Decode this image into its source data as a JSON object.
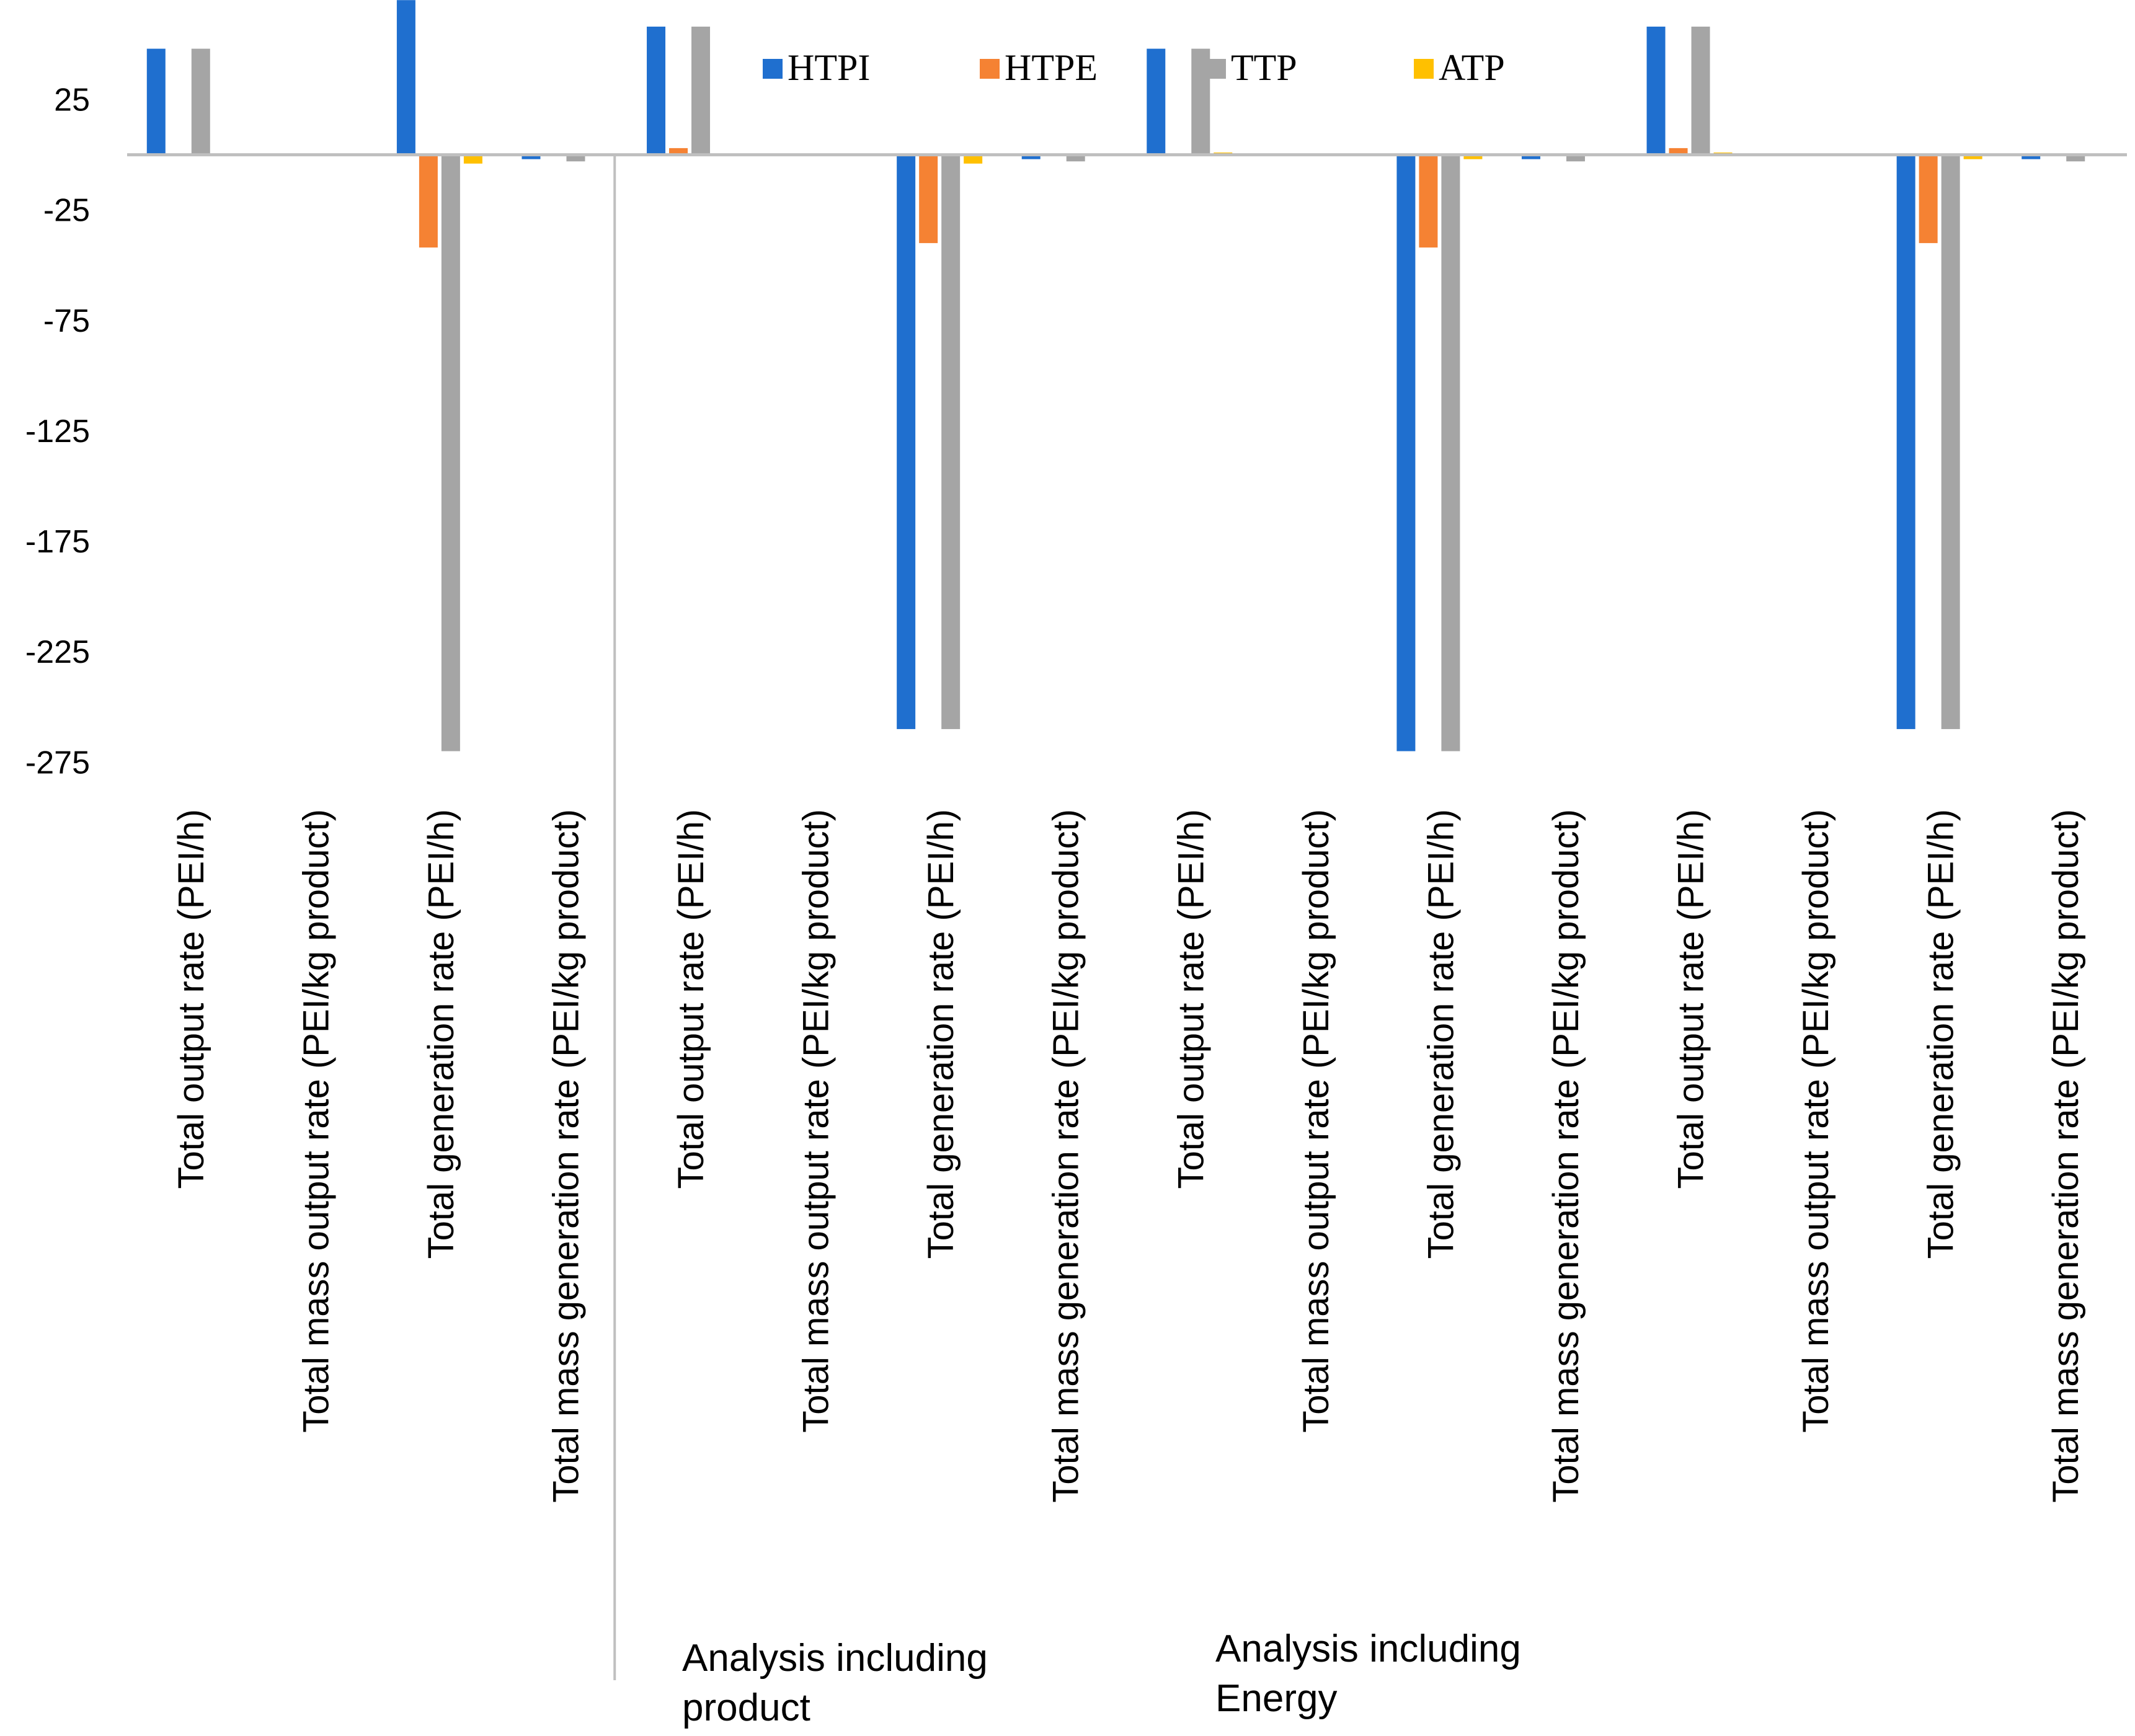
{
  "chart_data": {
    "type": "bar",
    "title": "",
    "xlabel": "",
    "ylabel": "",
    "ylim": [
      -285,
      65
    ],
    "y_ticks": [
      25,
      -25,
      -75,
      -125,
      -175,
      -225,
      -275
    ],
    "grid": false,
    "legend_position": "top-center",
    "categories": [
      "Total  output rate   (PEI/h)",
      "Total mass output rate (PEI/kg product)",
      "Total generation rate  (PEI/h)",
      "Total mass generation rate (PEI/kg product)",
      "Total output rate  (PEI/h)",
      "Total mass output rate (PEI/kg product)",
      "Total generation rate  (PEI/h)",
      "Total mass generation rate (PEI/kg product)",
      "Total output rate  (PEI/h)",
      "Total mass output rate (PEI/kg product)",
      "Total generation rate  (PEI/h)",
      "Total mass generation rate (PEI/kg product)",
      "Total output rate  (PEI/h)",
      "Total mass output rate (PEI/kg product)",
      "Total generation rate  (PEI/h)",
      "Total mass generation rate (PEI/kg product)"
    ],
    "series": [
      {
        "name": "HTPI",
        "color": "#1f6fcf",
        "values": [
          48,
          0,
          70,
          -2,
          58,
          0,
          -260,
          -2,
          48,
          0,
          -270,
          -2,
          58,
          0,
          -260,
          -2
        ]
      },
      {
        "name": "HTPE",
        "color": "#f58233",
        "values": [
          0,
          0,
          -42,
          0,
          3,
          0,
          -40,
          0,
          0,
          0,
          -42,
          0,
          3,
          0,
          -40,
          0
        ]
      },
      {
        "name": "TTP",
        "color": "#a5a5a5",
        "values": [
          48,
          0,
          -270,
          -3,
          58,
          0,
          -260,
          -3,
          48,
          0,
          -270,
          -3,
          58,
          0,
          -260,
          -3
        ]
      },
      {
        "name": "ATP",
        "color": "#ffc000",
        "values": [
          0,
          0,
          -4,
          0,
          0,
          0,
          -4,
          0,
          1,
          0,
          -2,
          0,
          1,
          0,
          -2,
          0
        ]
      }
    ],
    "group_annotations": [
      "Analysis including\nproduct",
      "Analysis including\nEnergy"
    ]
  }
}
